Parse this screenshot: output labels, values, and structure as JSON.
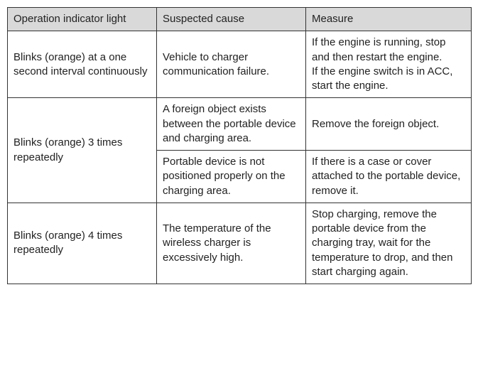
{
  "table": {
    "headers": {
      "indicator": "Operation indicator light",
      "cause": "Suspected cause",
      "measure": "Measure"
    },
    "rows": {
      "r1": {
        "indicator": "Blinks (orange) at a one second interval continuously",
        "cause": "Vehicle to charger communication failure.",
        "measure": "If the engine is running, stop and then restart the engine.\nIf the engine switch is in ACC, start the engine."
      },
      "r2": {
        "indicator": "Blinks (orange) 3 times repeatedly",
        "cause_a": "A foreign object exists between the portable device and charging area.",
        "measure_a": "Remove the foreign object.",
        "cause_b": "Portable device is not positioned properly on the charging area.",
        "measure_b": "If there is a case or cover attached to the portable device, remove it."
      },
      "r3": {
        "indicator": "Blinks (orange) 4 times repeatedly",
        "cause": "The temperature of the wireless charger is excessively high.",
        "measure": "Stop charging, remove the portable device from the charging tray, wait for the temperature to drop, and then start charging again."
      }
    }
  }
}
